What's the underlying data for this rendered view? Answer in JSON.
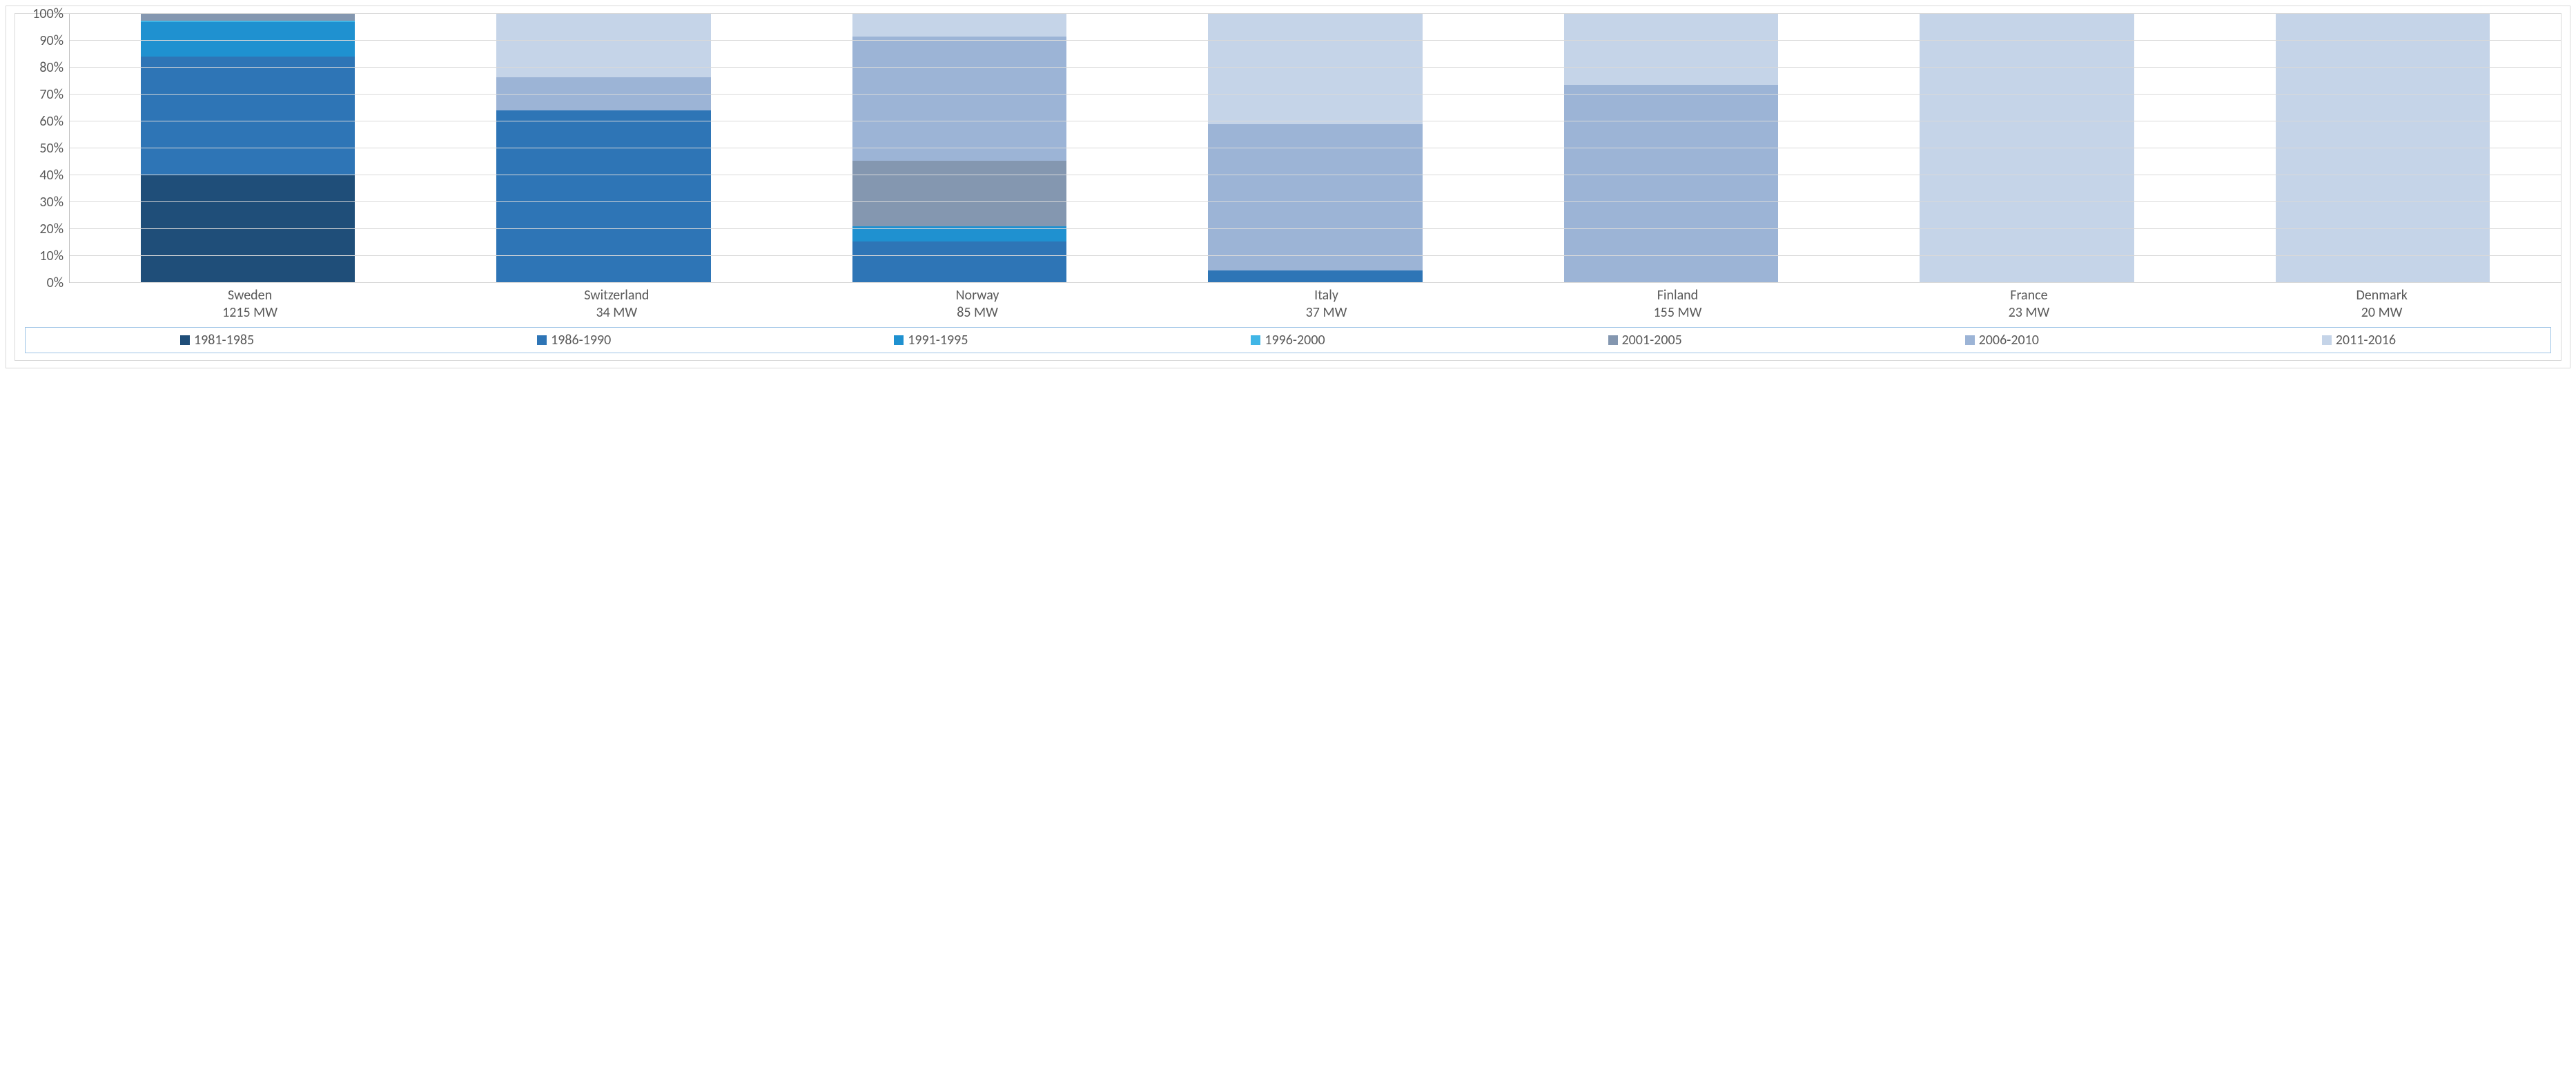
{
  "chart": {
    "type": "stacked_bar_100pct",
    "background_color": "#ffffff",
    "border_color": "#d9d9d9",
    "axis_line_color": "#bfbfbf",
    "grid_color": "#d9d9d9",
    "text_color": "#595959",
    "label_fontsize": 20,
    "y_axis": {
      "min": 0,
      "max": 100,
      "tick_step": 10,
      "ticks": [
        {
          "v": 0,
          "label": "0%"
        },
        {
          "v": 10,
          "label": "10%"
        },
        {
          "v": 20,
          "label": "20%"
        },
        {
          "v": 30,
          "label": "30%"
        },
        {
          "v": 40,
          "label": "40%"
        },
        {
          "v": 50,
          "label": "50%"
        },
        {
          "v": 60,
          "label": "60%"
        },
        {
          "v": 70,
          "label": "70%"
        },
        {
          "v": 80,
          "label": "80%"
        },
        {
          "v": 90,
          "label": "90%"
        },
        {
          "v": 100,
          "label": "100%"
        }
      ]
    },
    "series": [
      {
        "key": "p1981_1985",
        "label": "1981-1985",
        "color": "#1f4e79"
      },
      {
        "key": "p1986_1990",
        "label": "1986-1990",
        "color": "#2e75b6"
      },
      {
        "key": "p1991_1995",
        "label": "1991-1995",
        "color": "#1f91d0"
      },
      {
        "key": "p1996_2000",
        "label": "1996-2000",
        "color": "#41b6e6"
      },
      {
        "key": "p2001_2005",
        "label": "2001-2005",
        "color": "#8497b0"
      },
      {
        "key": "p2006_2010",
        "label": "2006-2010",
        "color": "#9cb4d6"
      },
      {
        "key": "p2011_2016",
        "label": "2011-2016",
        "color": "#c5d4e8"
      }
    ],
    "categories": [
      {
        "name": "Sweden",
        "label_line1": "Sweden",
        "label_line2": "1215 MW",
        "values": {
          "p1981_1985": 40,
          "p1986_1990": 44,
          "p1991_1995": 13,
          "p1996_2000": 0.5,
          "p2001_2005": 2.5,
          "p2006_2010": 0,
          "p2011_2016": 0
        }
      },
      {
        "name": "Switzerland",
        "label_line1": "Switzerland",
        "label_line2": "34 MW",
        "values": {
          "p1981_1985": 0,
          "p1986_1990": 64,
          "p1991_1995": 0,
          "p1996_2000": 0,
          "p2001_2005": 0,
          "p2006_2010": 12.5,
          "p2011_2016": 23.5
        }
      },
      {
        "name": "Norway",
        "label_line1": "Norway",
        "label_line2": "85 MW",
        "values": {
          "p1981_1985": 0,
          "p1986_1990": 15.5,
          "p1991_1995": 5.5,
          "p1996_2000": 0,
          "p2001_2005": 24.5,
          "p2006_2010": 46,
          "p2011_2016": 8.5
        }
      },
      {
        "name": "Italy",
        "label_line1": "Italy",
        "label_line2": "37 MW",
        "values": {
          "p1981_1985": 0,
          "p1986_1990": 4.5,
          "p1991_1995": 0,
          "p1996_2000": 0,
          "p2001_2005": 0,
          "p2006_2010": 54.5,
          "p2011_2016": 41
        }
      },
      {
        "name": "Finland",
        "label_line1": "Finland",
        "label_line2": "155 MW",
        "values": {
          "p1981_1985": 0,
          "p1986_1990": 0,
          "p1991_1995": 0,
          "p1996_2000": 0,
          "p2001_2005": 0,
          "p2006_2010": 73.5,
          "p2011_2016": 26.5
        }
      },
      {
        "name": "France",
        "label_line1": "France",
        "label_line2": "23 MW",
        "values": {
          "p1981_1985": 0,
          "p1986_1990": 0,
          "p1991_1995": 0,
          "p1996_2000": 0,
          "p2001_2005": 0,
          "p2006_2010": 0,
          "p2011_2016": 100
        }
      },
      {
        "name": "Denmark",
        "label_line1": "Denmark",
        "label_line2": "20 MW",
        "values": {
          "p1981_1985": 0,
          "p1986_1990": 0,
          "p1991_1995": 0,
          "p1996_2000": 0,
          "p2001_2005": 0,
          "p2006_2010": 0,
          "p2011_2016": 100
        }
      }
    ],
    "bar_width_pct": 8.6,
    "legend_border_color": "#9dc3e6"
  }
}
